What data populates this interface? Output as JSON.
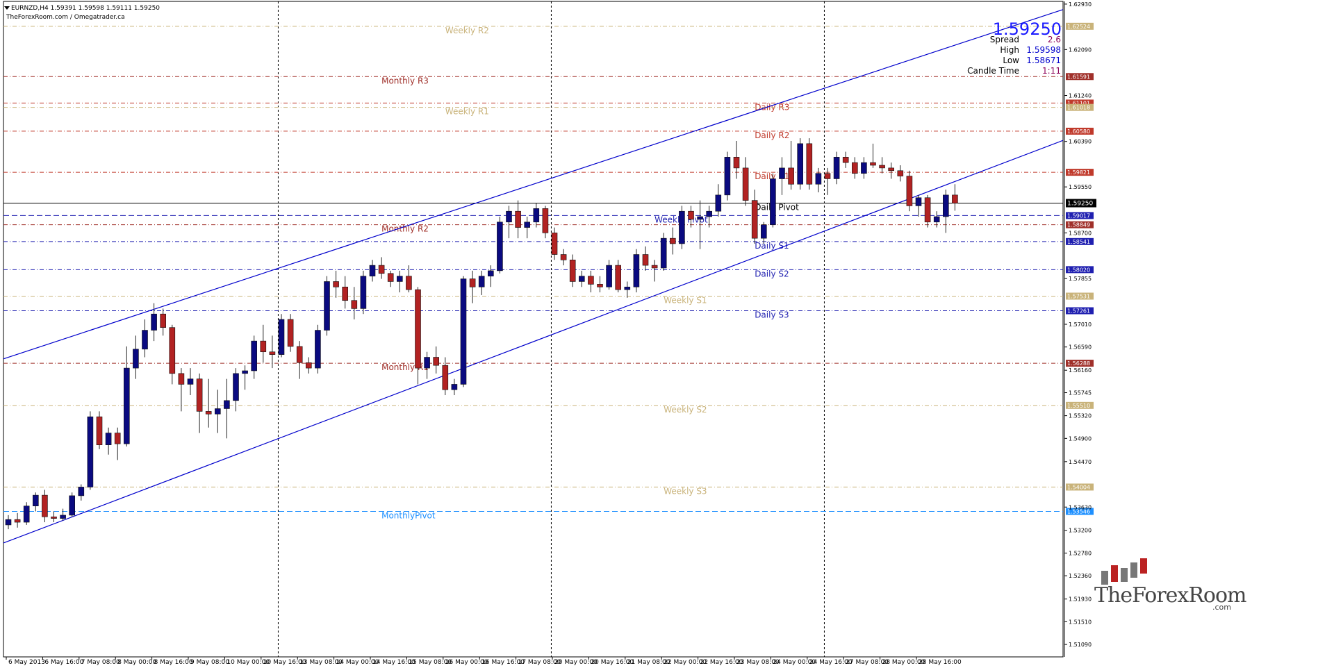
{
  "header": {
    "symbol_line": "EURNZD,H4  1.59391 1.59598 1.59111 1.59250",
    "source_line": "TheForexRoom.com / Omegatrader.ca"
  },
  "info_panel": {
    "bid": "1.59250",
    "spread_label": "Spread",
    "spread_value": "2.6",
    "high_label": "High",
    "high_value": "1.59598",
    "low_label": "Low",
    "low_value": "1.58671",
    "candle_time_label": "Candle Time",
    "candle_time_value": "1:11"
  },
  "logo": {
    "text": "TheForexRoom",
    "suffix": ".com"
  },
  "colors": {
    "bull": "#0a0a80",
    "bear": "#b22222",
    "channel": "#0000cc",
    "daily_resistance": "#c0392b",
    "daily_support": "#1f1fb0",
    "weekly": "#c9b37a",
    "monthly": "#a0302a",
    "monthly_pivot": "#1e90ff",
    "axis": "#000000",
    "grid_vertical": "#000000"
  },
  "chart_data": {
    "type": "candlestick",
    "symbol": "EURNZD",
    "timeframe": "H4",
    "ylim": [
      1.5086,
      1.6298
    ],
    "y_ticks": [
      "1.62930",
      "1.62090",
      "1.61240",
      "1.60390",
      "1.59550",
      "1.58700",
      "1.57855",
      "1.57010",
      "1.56590",
      "1.56160",
      "1.55745",
      "1.55320",
      "1.54900",
      "1.54470",
      "1.53630",
      "1.53200",
      "1.52780",
      "1.52360",
      "1.51930",
      "1.51510",
      "1.51090"
    ],
    "x_labels": [
      "6 May 2013",
      "6 May 16:00",
      "7 May 08:00",
      "8 May 00:00",
      "8 May 16:00",
      "9 May 08:00",
      "10 May 00:00",
      "10 May 16:00",
      "13 May 08:00",
      "14 May 00:00",
      "14 May 16:00",
      "15 May 08:00",
      "16 May 00:00",
      "16 May 16:00",
      "17 May 08:00",
      "20 May 00:00",
      "20 May 16:00",
      "21 May 08:00",
      "22 May 00:00",
      "22 May 16:00",
      "23 May 08:00",
      "24 May 00:00",
      "24 May 16:00",
      "27 May 08:00",
      "28 May 00:00",
      "28 May 16:00"
    ],
    "x_label_start_bar": 0,
    "x_label_step_bars": 4,
    "day_separators_bar": [
      30,
      60,
      90
    ],
    "candles": [
      [
        1.533,
        1.5348,
        1.5322,
        1.534
      ],
      [
        1.534,
        1.5352,
        1.5325,
        1.5335
      ],
      [
        1.5335,
        1.5372,
        1.533,
        1.5365
      ],
      [
        1.5365,
        1.539,
        1.5355,
        1.5385
      ],
      [
        1.5385,
        1.5395,
        1.5335,
        1.5345
      ],
      [
        1.5345,
        1.5355,
        1.5335,
        1.5342
      ],
      [
        1.5342,
        1.536,
        1.5338,
        1.5348
      ],
      [
        1.5348,
        1.539,
        1.5345,
        1.5384
      ],
      [
        1.5384,
        1.5405,
        1.5375,
        1.54
      ],
      [
        1.54,
        1.554,
        1.5395,
        1.553
      ],
      [
        1.553,
        1.554,
        1.547,
        1.5478
      ],
      [
        1.5478,
        1.551,
        1.546,
        1.55
      ],
      [
        1.55,
        1.551,
        1.545,
        1.548
      ],
      [
        1.548,
        1.566,
        1.5475,
        1.562
      ],
      [
        1.562,
        1.568,
        1.56,
        1.5655
      ],
      [
        1.5655,
        1.571,
        1.564,
        1.569
      ],
      [
        1.569,
        1.574,
        1.567,
        1.572
      ],
      [
        1.572,
        1.573,
        1.568,
        1.5695
      ],
      [
        1.5695,
        1.57,
        1.559,
        1.561
      ],
      [
        1.561,
        1.562,
        1.554,
        1.559
      ],
      [
        1.559,
        1.562,
        1.557,
        1.56
      ],
      [
        1.56,
        1.561,
        1.55,
        1.554
      ],
      [
        1.554,
        1.56,
        1.551,
        1.5535
      ],
      [
        1.5535,
        1.558,
        1.55,
        1.5545
      ],
      [
        1.5545,
        1.56,
        1.549,
        1.556
      ],
      [
        1.556,
        1.562,
        1.554,
        1.561
      ],
      [
        1.561,
        1.5625,
        1.558,
        1.5615
      ],
      [
        1.5615,
        1.568,
        1.56,
        1.567
      ],
      [
        1.567,
        1.57,
        1.563,
        1.565
      ],
      [
        1.565,
        1.568,
        1.562,
        1.5645
      ],
      [
        1.5645,
        1.572,
        1.564,
        1.571
      ],
      [
        1.571,
        1.572,
        1.565,
        1.566
      ],
      [
        1.566,
        1.567,
        1.56,
        1.563
      ],
      [
        1.563,
        1.564,
        1.561,
        1.562
      ],
      [
        1.562,
        1.57,
        1.561,
        1.569
      ],
      [
        1.569,
        1.579,
        1.568,
        1.578
      ],
      [
        1.578,
        1.58,
        1.575,
        1.577
      ],
      [
        1.577,
        1.579,
        1.573,
        1.5745
      ],
      [
        1.5745,
        1.577,
        1.571,
        1.573
      ],
      [
        1.573,
        1.58,
        1.572,
        1.579
      ],
      [
        1.579,
        1.582,
        1.578,
        1.581
      ],
      [
        1.581,
        1.5825,
        1.5785,
        1.5795
      ],
      [
        1.5795,
        1.58,
        1.577,
        1.578
      ],
      [
        1.578,
        1.58,
        1.576,
        1.579
      ],
      [
        1.579,
        1.581,
        1.576,
        1.5765
      ],
      [
        1.5765,
        1.577,
        1.559,
        1.562
      ],
      [
        1.562,
        1.565,
        1.56,
        1.564
      ],
      [
        1.564,
        1.566,
        1.561,
        1.5625
      ],
      [
        1.5625,
        1.564,
        1.557,
        1.558
      ],
      [
        1.558,
        1.56,
        1.557,
        1.559
      ],
      [
        1.559,
        1.579,
        1.5585,
        1.5785
      ],
      [
        1.5785,
        1.58,
        1.574,
        1.577
      ],
      [
        1.577,
        1.58,
        1.5755,
        1.579
      ],
      [
        1.579,
        1.581,
        1.577,
        1.58
      ],
      [
        1.58,
        1.59,
        1.5795,
        1.589
      ],
      [
        1.589,
        1.592,
        1.586,
        1.591
      ],
      [
        1.591,
        1.593,
        1.586,
        1.588
      ],
      [
        1.588,
        1.59,
        1.586,
        1.589
      ],
      [
        1.589,
        1.5925,
        1.588,
        1.5915
      ],
      [
        1.5915,
        1.592,
        1.586,
        1.587
      ],
      [
        1.587,
        1.588,
        1.582,
        1.583
      ],
      [
        1.583,
        1.584,
        1.581,
        1.582
      ],
      [
        1.582,
        1.583,
        1.577,
        1.578
      ],
      [
        1.578,
        1.58,
        1.577,
        1.579
      ],
      [
        1.579,
        1.58,
        1.576,
        1.5775
      ],
      [
        1.5775,
        1.579,
        1.576,
        1.577
      ],
      [
        1.577,
        1.582,
        1.5765,
        1.581
      ],
      [
        1.581,
        1.582,
        1.576,
        1.5765
      ],
      [
        1.5765,
        1.578,
        1.575,
        1.577
      ],
      [
        1.577,
        1.584,
        1.576,
        1.583
      ],
      [
        1.583,
        1.5845,
        1.58,
        1.581
      ],
      [
        1.581,
        1.582,
        1.578,
        1.5805
      ],
      [
        1.5805,
        1.587,
        1.58,
        1.586
      ],
      [
        1.586,
        1.588,
        1.583,
        1.585
      ],
      [
        1.585,
        1.592,
        1.584,
        1.591
      ],
      [
        1.591,
        1.592,
        1.588,
        1.5895
      ],
      [
        1.5895,
        1.593,
        1.584,
        1.59
      ],
      [
        1.59,
        1.592,
        1.588,
        1.591
      ],
      [
        1.591,
        1.596,
        1.59,
        1.594
      ],
      [
        1.594,
        1.602,
        1.593,
        1.601
      ],
      [
        1.601,
        1.604,
        1.597,
        1.599
      ],
      [
        1.599,
        1.601,
        1.592,
        1.593
      ],
      [
        1.593,
        1.595,
        1.585,
        1.586
      ],
      [
        1.586,
        1.589,
        1.585,
        1.5885
      ],
      [
        1.5885,
        1.598,
        1.588,
        1.597
      ],
      [
        1.597,
        1.601,
        1.594,
        1.599
      ],
      [
        1.599,
        1.604,
        1.595,
        1.596
      ],
      [
        1.596,
        1.6045,
        1.595,
        1.6035
      ],
      [
        1.6035,
        1.6045,
        1.595,
        1.596
      ],
      [
        1.596,
        1.599,
        1.5945,
        1.598
      ],
      [
        1.598,
        1.599,
        1.594,
        1.597
      ],
      [
        1.597,
        1.602,
        1.596,
        1.601
      ],
      [
        1.601,
        1.602,
        1.599,
        1.6
      ],
      [
        1.6,
        1.601,
        1.597,
        1.598
      ],
      [
        1.598,
        1.601,
        1.597,
        1.6
      ],
      [
        1.6,
        1.6035,
        1.599,
        1.5995
      ],
      [
        1.5995,
        1.601,
        1.598,
        1.599
      ],
      [
        1.599,
        1.6,
        1.597,
        1.5985
      ],
      [
        1.5985,
        1.5995,
        1.5965,
        1.5975
      ],
      [
        1.5975,
        1.5985,
        1.591,
        1.592
      ],
      [
        1.592,
        1.594,
        1.59,
        1.5935
      ],
      [
        1.5935,
        1.594,
        1.588,
        1.589
      ],
      [
        1.589,
        1.591,
        1.588,
        1.59
      ],
      [
        1.59,
        1.595,
        1.587,
        1.594
      ],
      [
        1.594,
        1.596,
        1.5911,
        1.5925
      ]
    ],
    "channel": {
      "upper": {
        "from": {
          "bar": 0,
          "price": 1.564
        },
        "to": {
          "bar": 104,
          "price": 1.6217
        }
      },
      "lower": {
        "from": {
          "bar": 0,
          "price": 1.53
        },
        "to": {
          "bar": 104,
          "price": 1.5965
        }
      }
    },
    "levels": [
      {
        "name": "Weekly R2",
        "price": 1.6252,
        "group": "weekly",
        "style": "dashdot",
        "axis_label": "1.62524",
        "label_bar": 48
      },
      {
        "name": "Monthly R3",
        "price": 1.6159,
        "group": "monthly",
        "style": "dashdot",
        "axis_label": "1.61591",
        "label_bar": 41
      },
      {
        "name": "Daily R3",
        "price": 1.611,
        "group": "daily_resistance",
        "style": "dashdot",
        "axis_label": "1.61101",
        "label_bar": 82
      },
      {
        "name": "Weekly R1",
        "price": 1.6102,
        "group": "weekly",
        "style": "dashdot",
        "axis_label": "1.61018",
        "label_bar": 48
      },
      {
        "name": "Daily R2",
        "price": 1.6058,
        "group": "daily_resistance",
        "style": "dashdot",
        "axis_label": "1.60580",
        "label_bar": 82
      },
      {
        "name": "Daily R1",
        "price": 1.5982,
        "group": "daily_resistance",
        "style": "dashdot",
        "axis_label": "1.59821",
        "label_bar": 82
      },
      {
        "name": "Daily Pivot",
        "price": 1.5925,
        "group": "black",
        "style": "solid",
        "axis_label": "1.59250",
        "label_bar": 82
      },
      {
        "name": "Weekly Pivot",
        "price": 1.5902,
        "group": "daily_support",
        "style": "dashed",
        "axis_label": "1.59017",
        "label_bar": 71
      },
      {
        "name": "Monthly R2",
        "price": 1.5885,
        "group": "monthly",
        "style": "dashdot",
        "axis_label": "1.58849",
        "label_bar": 41
      },
      {
        "name": "Daily S1",
        "price": 1.5854,
        "group": "daily_support",
        "style": "dashdot",
        "axis_label": "1.58541",
        "label_bar": 82
      },
      {
        "name": "Daily S2",
        "price": 1.5802,
        "group": "daily_support",
        "style": "dashdot",
        "axis_label": "1.58020",
        "label_bar": 82
      },
      {
        "name": "Weekly S1",
        "price": 1.5753,
        "group": "weekly",
        "style": "dashdot",
        "axis_label": "1.57531",
        "label_bar": 72
      },
      {
        "name": "Daily S3",
        "price": 1.5726,
        "group": "daily_support",
        "style": "dashdot",
        "axis_label": "1.57261",
        "label_bar": 82
      },
      {
        "name": "Monthly R1",
        "price": 1.5629,
        "group": "monthly",
        "style": "dashdot",
        "axis_label": "1.56288",
        "label_bar": 41
      },
      {
        "name": "Weekly S2",
        "price": 1.5551,
        "group": "weekly",
        "style": "dashdot",
        "axis_label": "1.55510",
        "label_bar": 72
      },
      {
        "name": "Weekly S3",
        "price": 1.54,
        "group": "weekly",
        "style": "dashdot",
        "axis_label": "1.54004",
        "label_bar": 72
      },
      {
        "name": "MonthlyPivot",
        "price": 1.5355,
        "group": "monthly_pivot",
        "style": "dashed",
        "axis_label": "1.53546",
        "label_bar": 41
      }
    ]
  }
}
